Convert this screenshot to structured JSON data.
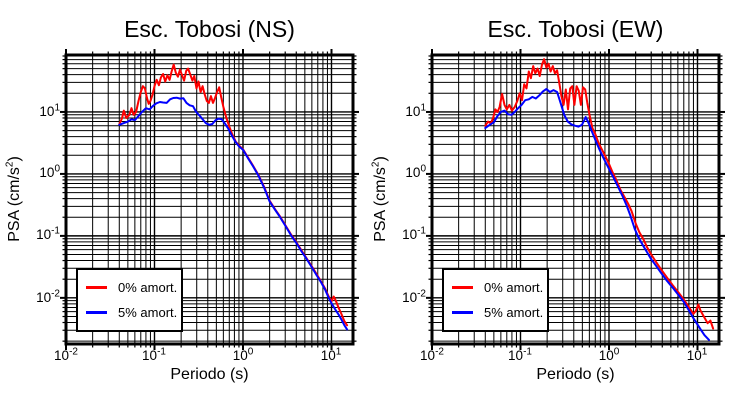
{
  "figure": {
    "background": "#ffffff",
    "frame_color": "#000000",
    "grid_color": "#000000"
  },
  "chart_data": [
    {
      "id": "ns",
      "type": "line",
      "title": "Esc. Tobosi (NS)",
      "xlabel": "Periodo (s)",
      "ylabel": {
        "prefix": "PSA (cm/s",
        "sup": "2",
        "suffix": ")"
      },
      "xscale": "log",
      "yscale": "log",
      "xlim": [
        0.01,
        17.5
      ],
      "ylim": [
        0.0018,
        83
      ],
      "grid": true,
      "x_ticks": [
        {
          "base": "10",
          "exp": "-2"
        },
        {
          "base": "10",
          "exp": "-1"
        },
        {
          "base": "10",
          "exp": "0"
        },
        {
          "base": "10",
          "exp": "1"
        }
      ],
      "y_ticks": [
        {
          "base": "10",
          "exp": "1"
        },
        {
          "base": "10",
          "exp": "0"
        },
        {
          "base": "10",
          "exp": "-1"
        },
        {
          "base": "10",
          "exp": "-2"
        }
      ],
      "legend": {
        "position": "lower-left",
        "entries": [
          {
            "label": "0% amort.",
            "color": "#ff0000"
          },
          {
            "label": "5% amort.",
            "color": "#0000ff"
          }
        ]
      },
      "series": [
        {
          "name": "0% amort.",
          "color": "#ff0000",
          "x": [
            0.04,
            0.043,
            0.045,
            0.048,
            0.052,
            0.055,
            0.058,
            0.062,
            0.066,
            0.07,
            0.074,
            0.078,
            0.082,
            0.086,
            0.09,
            0.095,
            0.1,
            0.106,
            0.112,
            0.118,
            0.125,
            0.132,
            0.14,
            0.148,
            0.156,
            0.165,
            0.174,
            0.184,
            0.194,
            0.205,
            0.216,
            0.228,
            0.24,
            0.254,
            0.268,
            0.282,
            0.298,
            0.314,
            0.332,
            0.35,
            0.37,
            0.39,
            0.412,
            0.434,
            0.458,
            0.484,
            0.51,
            0.538,
            0.568,
            0.6,
            0.65,
            0.7,
            0.76,
            0.83,
            0.9,
            1.0,
            1.15,
            1.3,
            1.5,
            1.75,
            2.0,
            2.3,
            2.6,
            3.0,
            3.5,
            4.0,
            4.6,
            5.2,
            6.0,
            6.8,
            7.6,
            8.5,
            9.3,
            10.0,
            10.6,
            11.2,
            12.0,
            13.0,
            14.0,
            15.0
          ],
          "y": [
            6.3,
            8.0,
            10.5,
            8.0,
            9.0,
            11.5,
            9.0,
            10.0,
            15.0,
            21.0,
            26.0,
            24.0,
            17.0,
            13.5,
            15.0,
            19.0,
            26.0,
            33.0,
            27.0,
            36.0,
            41.0,
            31.0,
            39.0,
            33.0,
            45.0,
            58.0,
            43.0,
            37.0,
            48.0,
            39.0,
            32.0,
            46.0,
            50.0,
            40.0,
            32.0,
            38.0,
            24.0,
            31.0,
            21.0,
            26.0,
            19.0,
            15.0,
            14.0,
            18.0,
            14.0,
            17.0,
            21.0,
            25.0,
            17.0,
            12.0,
            8.0,
            5.8,
            4.3,
            3.3,
            2.9,
            2.5,
            1.8,
            1.35,
            0.95,
            0.6,
            0.37,
            0.27,
            0.21,
            0.15,
            0.105,
            0.079,
            0.058,
            0.044,
            0.032,
            0.024,
            0.0185,
            0.014,
            0.0105,
            0.0088,
            0.0105,
            0.009,
            0.007,
            0.0054,
            0.0042,
            0.0036
          ]
        },
        {
          "name": "5% amort.",
          "color": "#0000ff",
          "x": [
            0.04,
            0.045,
            0.05,
            0.055,
            0.06,
            0.066,
            0.072,
            0.08,
            0.088,
            0.096,
            0.105,
            0.115,
            0.125,
            0.137,
            0.15,
            0.163,
            0.178,
            0.194,
            0.212,
            0.23,
            0.25,
            0.272,
            0.296,
            0.322,
            0.35,
            0.38,
            0.414,
            0.45,
            0.49,
            0.53,
            0.575,
            0.62,
            0.68,
            0.74,
            0.82,
            0.9,
            1.0,
            1.15,
            1.3,
            1.5,
            1.75,
            2.0,
            2.3,
            2.6,
            3.0,
            3.5,
            4.0,
            4.6,
            5.2,
            6.0,
            6.8,
            7.6,
            8.5,
            9.3,
            10.0,
            11.0,
            12.0,
            13.0,
            14.0,
            15.0
          ],
          "y": [
            6.2,
            6.6,
            7.0,
            7.6,
            7.4,
            8.6,
            10.0,
            11.5,
            11.0,
            12.5,
            13.8,
            14.5,
            14.2,
            14.0,
            16.0,
            16.8,
            17.0,
            16.4,
            16.6,
            14.0,
            12.8,
            12.4,
            10.0,
            8.8,
            7.6,
            6.6,
            6.2,
            6.4,
            7.4,
            7.8,
            7.6,
            6.6,
            5.4,
            4.3,
            3.3,
            2.8,
            2.45,
            1.75,
            1.32,
            0.93,
            0.58,
            0.36,
            0.265,
            0.205,
            0.147,
            0.102,
            0.077,
            0.056,
            0.043,
            0.031,
            0.023,
            0.018,
            0.0135,
            0.01,
            0.0082,
            0.0065,
            0.0054,
            0.0044,
            0.0036,
            0.0031
          ]
        }
      ]
    },
    {
      "id": "ew",
      "type": "line",
      "title": "Esc. Tobosi (EW)",
      "xlabel": "Periodo (s)",
      "ylabel": {
        "prefix": "PSA (cm/s",
        "sup": "2",
        "suffix": ")"
      },
      "xscale": "log",
      "yscale": "log",
      "xlim": [
        0.01,
        17.5
      ],
      "ylim": [
        0.0018,
        83
      ],
      "grid": true,
      "x_ticks": [
        {
          "base": "10",
          "exp": "-2"
        },
        {
          "base": "10",
          "exp": "-1"
        },
        {
          "base": "10",
          "exp": "0"
        },
        {
          "base": "10",
          "exp": "1"
        }
      ],
      "y_ticks": [
        {
          "base": "10",
          "exp": "1"
        },
        {
          "base": "10",
          "exp": "0"
        },
        {
          "base": "10",
          "exp": "-1"
        },
        {
          "base": "10",
          "exp": "-2"
        }
      ],
      "legend": {
        "position": "lower-left",
        "entries": [
          {
            "label": "0% amort.",
            "color": "#ff0000"
          },
          {
            "label": "5% amort.",
            "color": "#0000ff"
          }
        ]
      },
      "series": [
        {
          "name": "0% amort.",
          "color": "#ff0000",
          "x": [
            0.04,
            0.043,
            0.046,
            0.049,
            0.052,
            0.055,
            0.058,
            0.062,
            0.066,
            0.07,
            0.075,
            0.08,
            0.086,
            0.092,
            0.098,
            0.104,
            0.11,
            0.117,
            0.124,
            0.131,
            0.139,
            0.147,
            0.156,
            0.165,
            0.175,
            0.185,
            0.196,
            0.207,
            0.219,
            0.232,
            0.245,
            0.259,
            0.274,
            0.29,
            0.307,
            0.325,
            0.344,
            0.364,
            0.385,
            0.407,
            0.43,
            0.455,
            0.481,
            0.509,
            0.538,
            0.569,
            0.602,
            0.65,
            0.7,
            0.76,
            0.83,
            0.9,
            1.0,
            1.1,
            1.22,
            1.35,
            1.5,
            1.65,
            1.8,
            2.0,
            2.2,
            2.45,
            2.7,
            3.0,
            3.4,
            3.9,
            4.5,
            5.2,
            6.0,
            7.0,
            8.0,
            9.0,
            9.6,
            10.2,
            10.8,
            11.5,
            12.2,
            13.0,
            14.0,
            15.0
          ],
          "y": [
            6.0,
            7.0,
            6.5,
            8.0,
            11.0,
            10.0,
            12.0,
            19.5,
            13.0,
            11.0,
            13.0,
            10.5,
            12.0,
            15.0,
            20.0,
            15.5,
            28.0,
            24.0,
            45.0,
            35.0,
            55.0,
            42.0,
            50.0,
            38.0,
            58.0,
            71.0,
            52.0,
            60.0,
            45.0,
            55.0,
            42.0,
            47.0,
            30.0,
            18.0,
            13.0,
            23.0,
            11.0,
            24.0,
            26.0,
            13.0,
            26.0,
            22.0,
            13.0,
            25.0,
            23.0,
            14.0,
            9.0,
            5.5,
            4.4,
            3.2,
            2.5,
            2.0,
            1.45,
            1.05,
            0.78,
            0.55,
            0.42,
            0.33,
            0.25,
            0.16,
            0.115,
            0.088,
            0.065,
            0.05,
            0.038,
            0.0285,
            0.0215,
            0.0162,
            0.0125,
            0.0094,
            0.0071,
            0.0055,
            0.0062,
            0.0078,
            0.0063,
            0.0053,
            0.0046,
            0.0039,
            0.0043,
            0.0032
          ]
        },
        {
          "name": "5% amort.",
          "color": "#0000ff",
          "x": [
            0.04,
            0.045,
            0.05,
            0.055,
            0.06,
            0.066,
            0.072,
            0.079,
            0.086,
            0.094,
            0.103,
            0.113,
            0.124,
            0.136,
            0.149,
            0.163,
            0.179,
            0.196,
            0.215,
            0.236,
            0.259,
            0.284,
            0.312,
            0.342,
            0.376,
            0.412,
            0.452,
            0.496,
            0.545,
            0.598,
            0.65,
            0.71,
            0.78,
            0.86,
            0.95,
            1.05,
            1.15,
            1.28,
            1.42,
            1.58,
            1.75,
            1.95,
            2.15,
            2.4,
            2.7,
            3.0,
            3.4,
            3.9,
            4.5,
            5.2,
            6.0,
            7.0,
            8.0,
            9.0,
            10.0,
            11.0,
            12.0,
            13.5
          ],
          "y": [
            5.5,
            6.2,
            6.8,
            8.6,
            10.0,
            10.5,
            9.2,
            9.0,
            10.0,
            11.5,
            13.0,
            15.5,
            16.0,
            17.5,
            16.5,
            18.5,
            21.5,
            23.5,
            21.0,
            22.5,
            21.0,
            14.0,
            9.0,
            7.0,
            6.3,
            6.0,
            5.8,
            6.2,
            8.3,
            6.3,
            4.6,
            3.4,
            2.5,
            1.85,
            1.4,
            1.05,
            0.82,
            0.6,
            0.44,
            0.31,
            0.21,
            0.13,
            0.095,
            0.072,
            0.054,
            0.042,
            0.033,
            0.025,
            0.019,
            0.0148,
            0.0114,
            0.0086,
            0.0063,
            0.0047,
            0.0037,
            0.003,
            0.0025,
            0.0021
          ]
        }
      ]
    }
  ]
}
